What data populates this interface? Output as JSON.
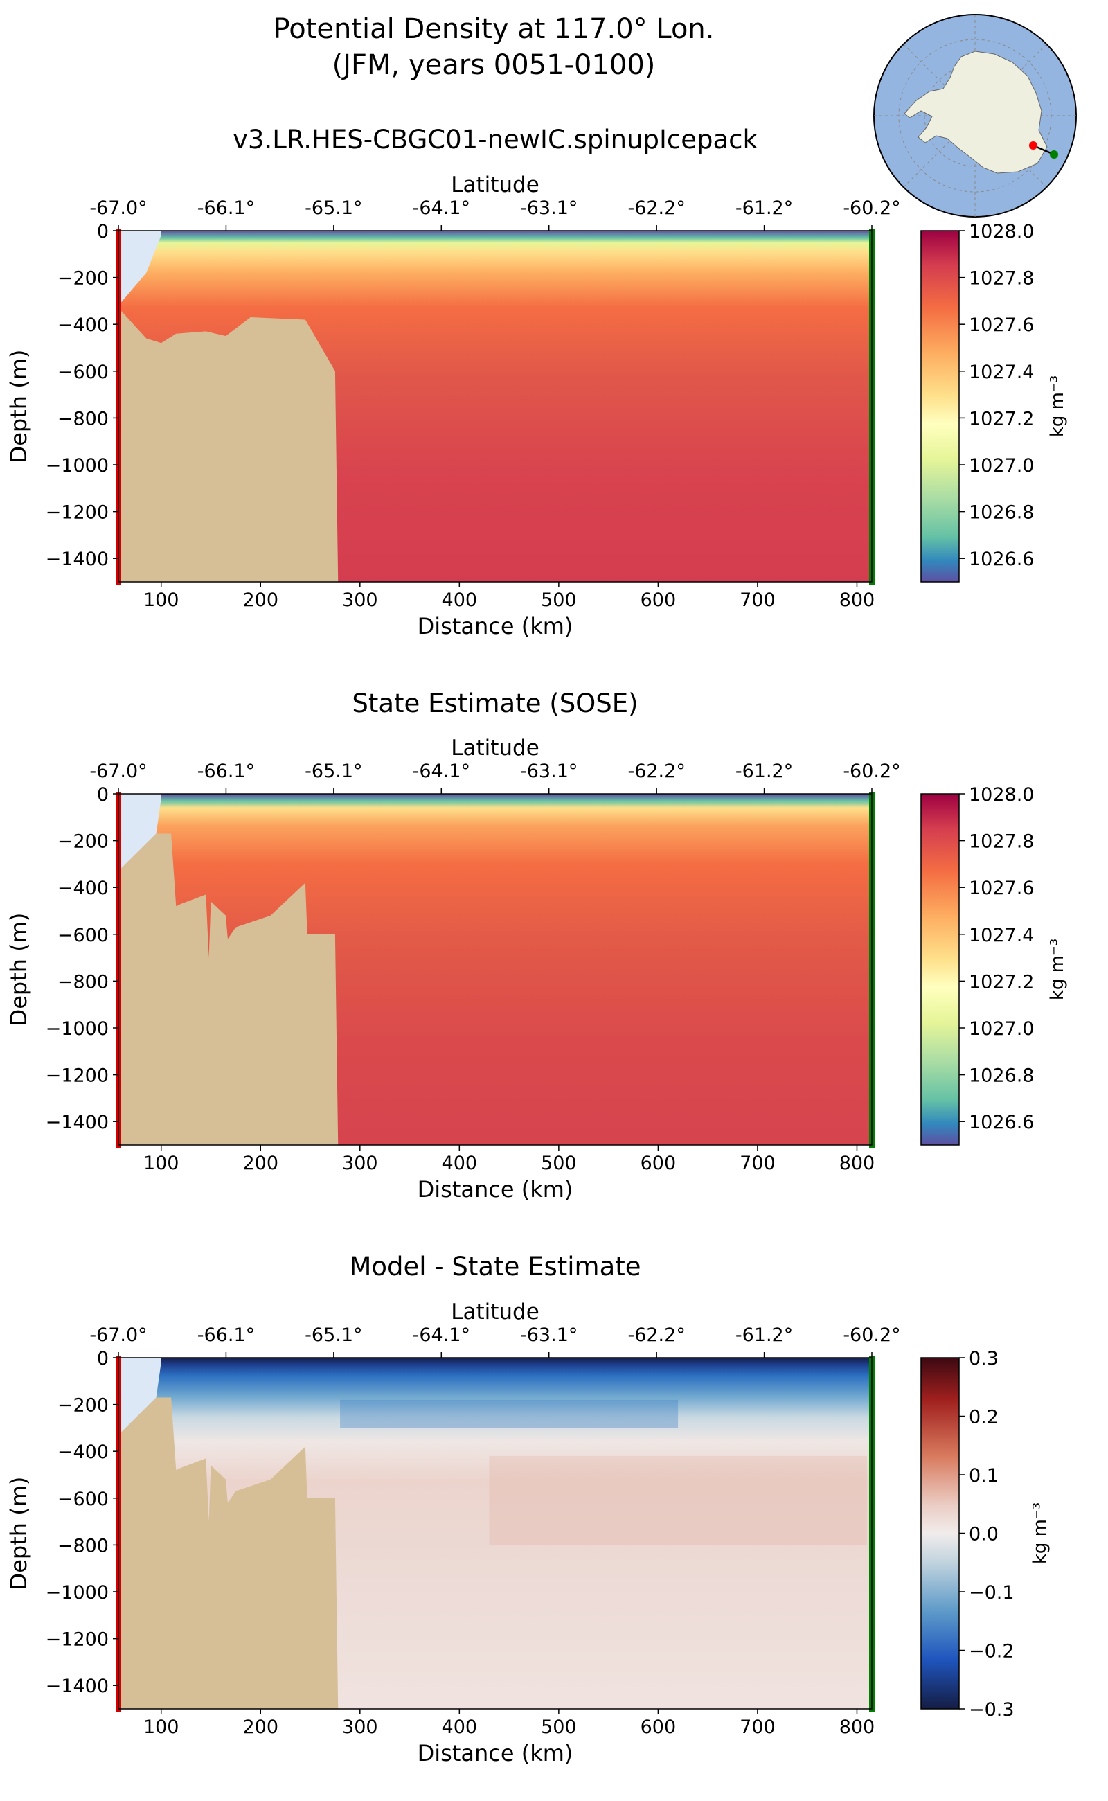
{
  "figure": {
    "title_line1": "Potential Density at 117.0° Lon.",
    "title_line2": "(JFM, years 0051-0100)"
  },
  "inset_map": {
    "region": "Antarctica (south polar stereographic)",
    "colors": {
      "ocean": "#94b5e0",
      "land": "#efefdf",
      "start": "#ff0000",
      "end": "#007f00"
    }
  },
  "chart_data": [
    {
      "type": "heatmap",
      "title": "v3.LR.HES-CBGC01-newIC.spinupIcepack",
      "xlabel": "Distance (km)",
      "ylabel": "Depth (m)",
      "top_axis_label": "Latitude",
      "top_ticks": [
        "-67.0°",
        "-66.1°",
        "-65.1°",
        "-64.1°",
        "-63.1°",
        "-62.2°",
        "-61.2°",
        "-60.2°"
      ],
      "xlim": [
        57,
        815
      ],
      "ylim": [
        -1500,
        0
      ],
      "x_ticks": [
        100,
        200,
        300,
        400,
        500,
        600,
        700,
        800
      ],
      "y_ticks": [
        0,
        -200,
        -400,
        -600,
        -800,
        -1000,
        -1200,
        -1400
      ],
      "colorbar": {
        "label": "kg m⁻³",
        "range": [
          1026.5,
          1028.0
        ],
        "ticks": [
          "1028.0",
          "1027.8",
          "1027.6",
          "1027.4",
          "1027.2",
          "1027.0",
          "1026.8",
          "1026.6"
        ],
        "colormap": "Spectral_r"
      },
      "seafloor_profile": [
        [
          57,
          -330
        ],
        [
          85,
          -460
        ],
        [
          100,
          -480
        ],
        [
          115,
          -440
        ],
        [
          145,
          -430
        ],
        [
          165,
          -450
        ],
        [
          190,
          -370
        ],
        [
          245,
          -380
        ],
        [
          275,
          -600
        ],
        [
          278,
          -1500
        ]
      ],
      "surface_density": 1026.6,
      "deep_density": 1027.85
    },
    {
      "type": "heatmap",
      "title": "State Estimate (SOSE)",
      "xlabel": "Distance (km)",
      "ylabel": "Depth (m)",
      "top_axis_label": "Latitude",
      "top_ticks": [
        "-67.0°",
        "-66.1°",
        "-65.1°",
        "-64.1°",
        "-63.1°",
        "-62.2°",
        "-61.2°",
        "-60.2°"
      ],
      "xlim": [
        57,
        815
      ],
      "ylim": [
        -1500,
        0
      ],
      "x_ticks": [
        100,
        200,
        300,
        400,
        500,
        600,
        700,
        800
      ],
      "y_ticks": [
        0,
        -200,
        -400,
        -600,
        -800,
        -1000,
        -1200,
        -1400
      ],
      "colorbar": {
        "label": "kg m⁻³",
        "range": [
          1026.5,
          1028.0
        ],
        "ticks": [
          "1028.0",
          "1027.8",
          "1027.6",
          "1027.4",
          "1027.2",
          "1027.0",
          "1026.8",
          "1026.6"
        ],
        "colormap": "Spectral_r"
      },
      "surface_density": 1026.6,
      "deep_density": 1027.8
    },
    {
      "type": "heatmap",
      "title": "Model - State Estimate",
      "xlabel": "Distance (km)",
      "ylabel": "Depth (m)",
      "top_axis_label": "Latitude",
      "top_ticks": [
        "-67.0°",
        "-66.1°",
        "-65.1°",
        "-64.1°",
        "-63.1°",
        "-62.2°",
        "-61.2°",
        "-60.2°"
      ],
      "xlim": [
        57,
        815
      ],
      "ylim": [
        -1500,
        0
      ],
      "x_ticks": [
        100,
        200,
        300,
        400,
        500,
        600,
        700,
        800
      ],
      "y_ticks": [
        0,
        -200,
        -400,
        -600,
        -800,
        -1000,
        -1200,
        -1400
      ],
      "colorbar": {
        "label": "kg m⁻³",
        "range": [
          -0.3,
          0.3
        ],
        "ticks": [
          "0.3",
          "0.2",
          "0.1",
          "0.0",
          "−0.1",
          "−0.2",
          "−0.3"
        ],
        "colormap": "balance"
      },
      "surface_anomaly": -0.3,
      "subsurface_anomaly": -0.15,
      "deep_anomaly": 0.03
    }
  ]
}
